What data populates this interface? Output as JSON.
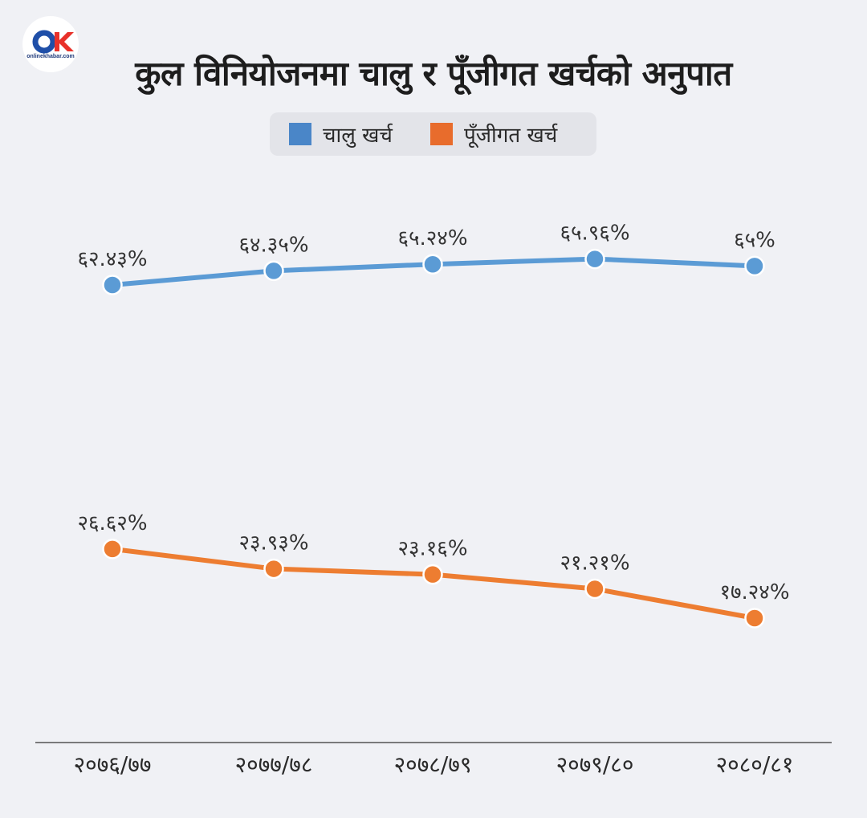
{
  "logo": {
    "text": "onlinekhabar.com"
  },
  "chart_data": {
    "type": "line",
    "title": "कुल विनियोजनमा चालु र पूँजीगत खर्चको अनुपात",
    "categories": [
      "२०७६/७७",
      "२०७७/७८",
      "२०७८/७९",
      "२०७९/८०",
      "२०८०/८१"
    ],
    "series": [
      {
        "name": "चालु खर्च",
        "color": "#5b9bd5",
        "values": [
          62.43,
          64.35,
          65.24,
          65.96,
          65
        ],
        "labels": [
          "६२.४३%",
          "६४.३५%",
          "६५.२४%",
          "६५.९६%",
          "६५%"
        ]
      },
      {
        "name": "पूँजीगत खर्च",
        "color": "#ed7d31",
        "values": [
          26.62,
          23.93,
          23.16,
          21.21,
          17.24
        ],
        "labels": [
          "२६.६२%",
          "२३.९३%",
          "२३.१६%",
          "२१.२१%",
          "१७.२४%"
        ]
      }
    ],
    "legend_swatch_colors": [
      "#4a86c8",
      "#e86c2c"
    ],
    "legend_position": "top-center",
    "grid": false
  }
}
